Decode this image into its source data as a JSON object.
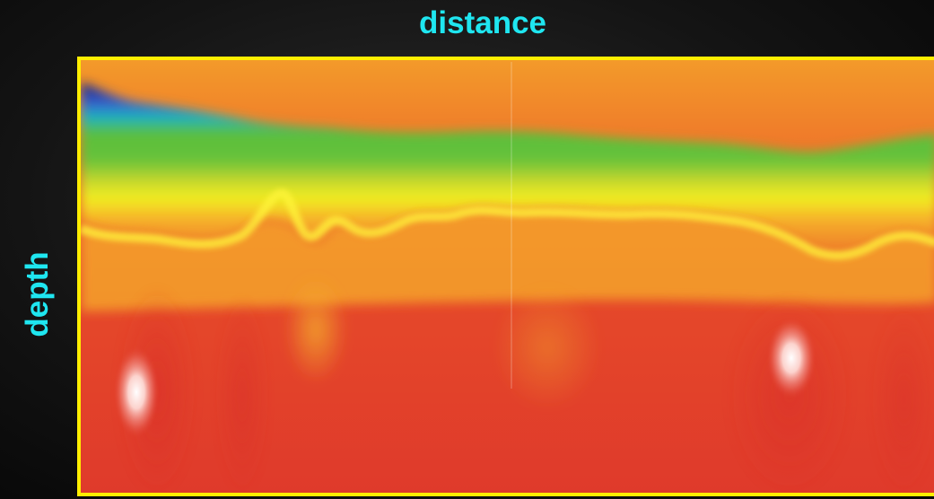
{
  "chart_data": {
    "type": "heatmap",
    "title": "",
    "xlabel": "distance",
    "ylabel": "depth",
    "grid": false,
    "legend": "none",
    "colormap": [
      "#1a2a8a",
      "#3a5ccc",
      "#19b3c4",
      "#5cbf3a",
      "#f2ee22",
      "#f6a72a",
      "#ee6a2a",
      "#e03c2a"
    ],
    "frame_color": "#ffee00",
    "label_color": "#1fe6f0"
  }
}
